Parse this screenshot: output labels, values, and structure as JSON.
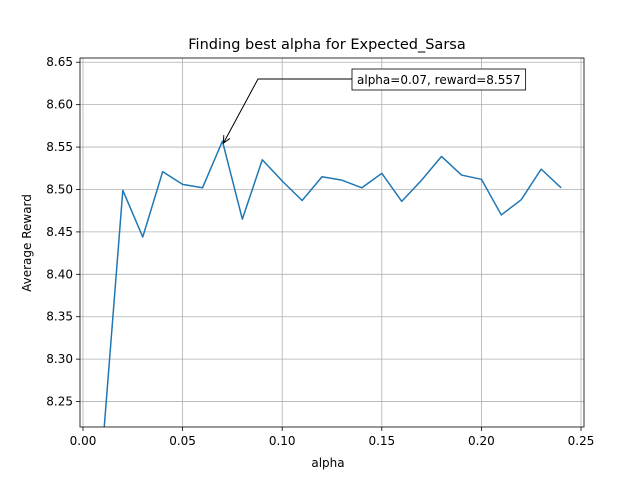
{
  "chart_data": {
    "type": "line",
    "title": "Finding best alpha for Expected_Sarsa",
    "xlabel": "alpha",
    "ylabel": "Average Reward",
    "xlim": [
      -0.0015,
      0.2515
    ],
    "ylim": [
      8.22,
      8.655
    ],
    "xticks": [
      0.0,
      0.05,
      0.1,
      0.15,
      0.2,
      0.25
    ],
    "xtick_labels": [
      "0.00",
      "0.05",
      "0.10",
      "0.15",
      "0.20",
      "0.25"
    ],
    "yticks": [
      8.25,
      8.3,
      8.35,
      8.4,
      8.45,
      8.5,
      8.55,
      8.6,
      8.65
    ],
    "ytick_labels": [
      "8.25",
      "8.30",
      "8.35",
      "8.40",
      "8.45",
      "8.50",
      "8.55",
      "8.60",
      "8.65"
    ],
    "grid": true,
    "series": [
      {
        "color": "#1f77b4",
        "x": [
          0.01,
          0.02,
          0.03,
          0.04,
          0.05,
          0.06,
          0.07,
          0.08,
          0.09,
          0.1,
          0.11,
          0.12,
          0.13,
          0.14,
          0.15,
          0.16,
          0.17,
          0.18,
          0.19,
          0.2,
          0.21,
          0.22,
          0.23,
          0.24
        ],
        "y": [
          8.2,
          8.499,
          8.444,
          8.521,
          8.506,
          8.502,
          8.557,
          8.465,
          8.535,
          8.51,
          8.487,
          8.515,
          8.511,
          8.502,
          8.519,
          8.486,
          8.511,
          8.539,
          8.517,
          8.512,
          8.47,
          8.488,
          8.524,
          8.502
        ]
      }
    ],
    "annotation": {
      "text": "alpha=0.07, reward=8.557",
      "point": [
        0.07,
        8.557
      ]
    }
  }
}
